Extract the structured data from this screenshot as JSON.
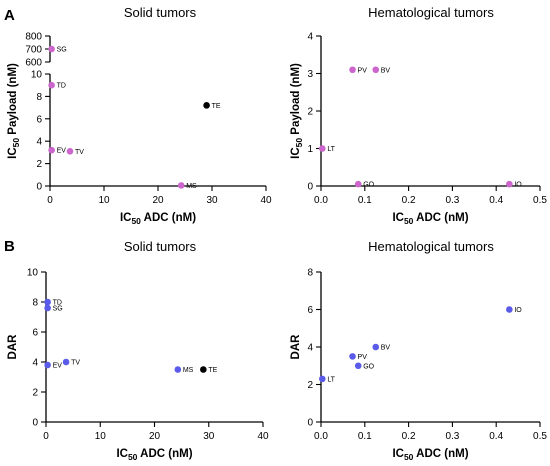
{
  "panels": [
    {
      "letter": "A"
    },
    {
      "letter": "B"
    }
  ],
  "chart_data": [
    {
      "type": "scatter",
      "panel": "A",
      "title": "Solid tumors",
      "xlabel": {
        "base": "IC",
        "sub": "50",
        "rest": " ADC (nM)"
      },
      "ylabel": {
        "base": "IC",
        "sub": "50",
        "rest": " Payload (nM)"
      },
      "xlim": [
        0,
        40
      ],
      "xticks": [
        0,
        10,
        20,
        30,
        40
      ],
      "y_segments": [
        {
          "ylim": [
            0,
            10
          ],
          "yticks": [
            0,
            2,
            4,
            6,
            8,
            10
          ]
        },
        {
          "ylim": [
            600,
            800
          ],
          "yticks": [
            600,
            700,
            800
          ]
        }
      ],
      "points": [
        {
          "label": "SG",
          "x": 0.3,
          "y": 700,
          "color": "#cc66cc"
        },
        {
          "label": "TD",
          "x": 0.3,
          "y": 9.0,
          "color": "#cc66cc"
        },
        {
          "label": "TE",
          "x": 29,
          "y": 7.2,
          "color": "#000000"
        },
        {
          "label": "EV",
          "x": 0.3,
          "y": 3.2,
          "color": "#cc66cc"
        },
        {
          "label": "TV",
          "x": 3.7,
          "y": 3.1,
          "color": "#cc66cc"
        },
        {
          "label": "MS",
          "x": 24.3,
          "y": 0.05,
          "color": "#cc66cc"
        }
      ]
    },
    {
      "type": "scatter",
      "panel": "A",
      "title": "Hematological tumors",
      "xlabel": {
        "base": "IC",
        "sub": "50",
        "rest": " ADC  (nM)"
      },
      "ylabel": {
        "base": "IC",
        "sub": "50",
        "rest": " Payload (nM)"
      },
      "xlim": [
        0,
        0.5
      ],
      "xticks": [
        0.0,
        0.1,
        0.2,
        0.3,
        0.4,
        0.5
      ],
      "ylim": [
        0,
        4
      ],
      "yticks": [
        0,
        1,
        2,
        3,
        4
      ],
      "points": [
        {
          "label": "PV",
          "x": 0.072,
          "y": 3.1,
          "color": "#cc66cc"
        },
        {
          "label": "BV",
          "x": 0.125,
          "y": 3.1,
          "color": "#cc66cc"
        },
        {
          "label": "LT",
          "x": 0.003,
          "y": 1.0,
          "color": "#cc66cc"
        },
        {
          "label": "GO",
          "x": 0.085,
          "y": 0.05,
          "color": "#cc66cc"
        },
        {
          "label": "IO",
          "x": 0.43,
          "y": 0.05,
          "color": "#cc66cc"
        }
      ]
    },
    {
      "type": "scatter",
      "panel": "B",
      "title": "Solid tumors",
      "xlabel": {
        "base": "IC",
        "sub": "50",
        "rest": " ADC (nM)"
      },
      "ylabel": {
        "base": "DAR",
        "sub": "",
        "rest": ""
      },
      "xlim": [
        0,
        40
      ],
      "xticks": [
        0,
        10,
        20,
        30,
        40
      ],
      "ylim": [
        0,
        10
      ],
      "yticks": [
        0,
        2,
        4,
        6,
        8,
        10
      ],
      "points": [
        {
          "label": "TD",
          "x": 0.3,
          "y": 8.0,
          "color": "#5b5bea"
        },
        {
          "label": "SG",
          "x": 0.3,
          "y": 7.6,
          "color": "#5b5bea"
        },
        {
          "label": "EV",
          "x": 0.3,
          "y": 3.8,
          "color": "#5b5bea"
        },
        {
          "label": "TV",
          "x": 3.7,
          "y": 4.0,
          "color": "#5b5bea"
        },
        {
          "label": "MS",
          "x": 24.3,
          "y": 3.5,
          "color": "#5b5bea"
        },
        {
          "label": "TE",
          "x": 29,
          "y": 3.5,
          "color": "#000000"
        }
      ]
    },
    {
      "type": "scatter",
      "panel": "B",
      "title": "Hematological tumors",
      "xlabel": {
        "base": "IC",
        "sub": "50",
        "rest": " ADC (nM)"
      },
      "ylabel": {
        "base": "DAR",
        "sub": "",
        "rest": ""
      },
      "xlim": [
        0,
        0.5
      ],
      "xticks": [
        0.0,
        0.1,
        0.2,
        0.3,
        0.4,
        0.5
      ],
      "ylim": [
        0,
        8
      ],
      "yticks": [
        0,
        2,
        4,
        6,
        8
      ],
      "points": [
        {
          "label": "IO",
          "x": 0.43,
          "y": 6.0,
          "color": "#5b5bea"
        },
        {
          "label": "BV",
          "x": 0.125,
          "y": 4.0,
          "color": "#5b5bea"
        },
        {
          "label": "PV",
          "x": 0.072,
          "y": 3.5,
          "color": "#5b5bea"
        },
        {
          "label": "GO",
          "x": 0.085,
          "y": 3.0,
          "color": "#5b5bea"
        },
        {
          "label": "LT",
          "x": 0.003,
          "y": 2.3,
          "color": "#5b5bea"
        }
      ]
    }
  ]
}
